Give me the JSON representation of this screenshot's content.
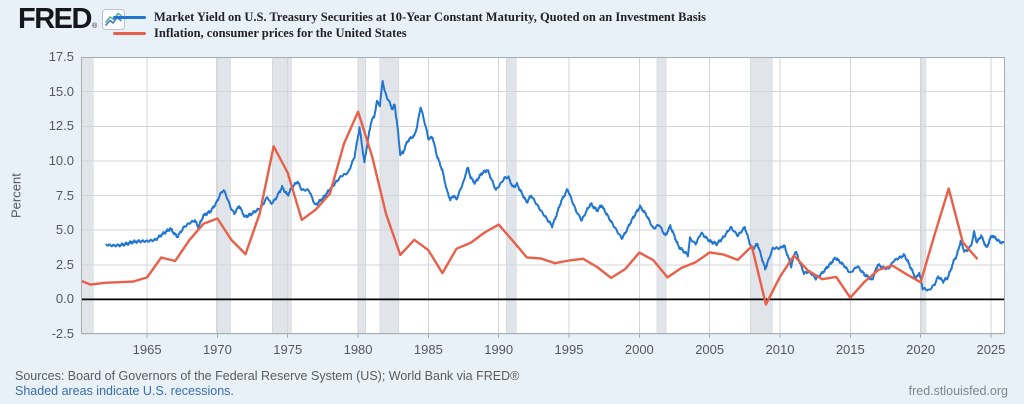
{
  "header": {
    "logo_text": "FRED",
    "logo_registered": "®"
  },
  "footer": {
    "sources": "Sources: Board of Governors of the Federal Reserve System (US); World Bank via FRED®",
    "recession_note": "Shaded areas indicate U.S. recessions.",
    "site_link": "fred.stlouisfed.org"
  },
  "chart_data": {
    "type": "line",
    "title": "",
    "xlabel": "",
    "ylabel": "Percent",
    "xlim": [
      1960.3,
      2026.0
    ],
    "ylim": [
      -2.5,
      17.5
    ],
    "yticks": [
      -2.5,
      0.0,
      2.5,
      5.0,
      7.5,
      10.0,
      12.5,
      15.0,
      17.5
    ],
    "xticks": [
      1965,
      1970,
      1975,
      1980,
      1985,
      1990,
      1995,
      2000,
      2005,
      2010,
      2015,
      2020,
      2025
    ],
    "grid": true,
    "legend_position": "top-left",
    "zero_line": 0,
    "recession_bands": [
      [
        1960.3,
        1961.17
      ],
      [
        1969.92,
        1970.92
      ],
      [
        1973.9,
        1975.25
      ],
      [
        1980.0,
        1980.55
      ],
      [
        1981.55,
        1982.9
      ],
      [
        1990.55,
        1991.25
      ],
      [
        2001.25,
        2001.9
      ],
      [
        2007.9,
        2009.45
      ],
      [
        2020.05,
        2020.38
      ]
    ],
    "colors": {
      "recession_band": "#e1e5e9",
      "recession_edge": "#c9ced3",
      "grid": "#d3d6d9",
      "border": "#a9adb2",
      "zero_line": "#000000",
      "plot_background": "#ffffff",
      "page_background": "#e9f1f8"
    },
    "series": [
      {
        "name": "Market Yield on U.S. Treasury Securities at 10-Year Constant Maturity, Quoted on an Investment Basis",
        "color": "#2176d2",
        "style": "noisy",
        "points": [
          [
            1962.1,
            3.95
          ],
          [
            1962.5,
            3.88
          ],
          [
            1963,
            3.9
          ],
          [
            1963.5,
            4.0
          ],
          [
            1964,
            4.15
          ],
          [
            1964.6,
            4.2
          ],
          [
            1965,
            4.2
          ],
          [
            1965.6,
            4.3
          ],
          [
            1966,
            4.65
          ],
          [
            1966.65,
            5.1
          ],
          [
            1966.9,
            4.8
          ],
          [
            1967.15,
            4.5
          ],
          [
            1967.6,
            5.2
          ],
          [
            1968,
            5.5
          ],
          [
            1968.4,
            5.7
          ],
          [
            1968.65,
            5.2
          ],
          [
            1969,
            6.05
          ],
          [
            1969.5,
            6.35
          ],
          [
            1969.95,
            7.0
          ],
          [
            1970.2,
            7.6
          ],
          [
            1970.45,
            7.9
          ],
          [
            1970.7,
            7.3
          ],
          [
            1970.95,
            6.6
          ],
          [
            1971.2,
            6.2
          ],
          [
            1971.55,
            6.75
          ],
          [
            1971.95,
            5.95
          ],
          [
            1972.3,
            6.1
          ],
          [
            1972.75,
            6.4
          ],
          [
            1973.1,
            6.6
          ],
          [
            1973.55,
            7.4
          ],
          [
            1973.8,
            6.9
          ],
          [
            1974.1,
            7.2
          ],
          [
            1974.6,
            8.1
          ],
          [
            1975.0,
            7.5
          ],
          [
            1975.3,
            8.1
          ],
          [
            1975.7,
            8.5
          ],
          [
            1976,
            7.9
          ],
          [
            1976.5,
            7.9
          ],
          [
            1976.95,
            6.8
          ],
          [
            1977.5,
            7.3
          ],
          [
            1978,
            7.95
          ],
          [
            1978.8,
            8.9
          ],
          [
            1979.3,
            9.15
          ],
          [
            1979.75,
            10.3
          ],
          [
            1980.1,
            12.4
          ],
          [
            1980.45,
            9.9
          ],
          [
            1980.7,
            11.5
          ],
          [
            1980.95,
            12.9
          ],
          [
            1981.15,
            13.2
          ],
          [
            1981.35,
            14.3
          ],
          [
            1981.55,
            14.0
          ],
          [
            1981.75,
            15.8
          ],
          [
            1981.9,
            15.0
          ],
          [
            1982.05,
            14.6
          ],
          [
            1982.25,
            14.2
          ],
          [
            1982.45,
            13.7
          ],
          [
            1982.6,
            14.1
          ],
          [
            1982.8,
            12.5
          ],
          [
            1983,
            10.5
          ],
          [
            1983.2,
            10.6
          ],
          [
            1983.5,
            11.4
          ],
          [
            1983.8,
            11.7
          ],
          [
            1984,
            11.8
          ],
          [
            1984.2,
            12.5
          ],
          [
            1984.45,
            13.9
          ],
          [
            1984.8,
            12.5
          ],
          [
            1985,
            11.6
          ],
          [
            1985.3,
            11.7
          ],
          [
            1985.6,
            10.4
          ],
          [
            1986,
            9.3
          ],
          [
            1986.3,
            7.9
          ],
          [
            1986.55,
            7.2
          ],
          [
            1986.8,
            7.5
          ],
          [
            1987,
            7.2
          ],
          [
            1987.3,
            8.0
          ],
          [
            1987.55,
            8.6
          ],
          [
            1987.78,
            9.6
          ],
          [
            1988,
            8.8
          ],
          [
            1988.3,
            8.4
          ],
          [
            1988.8,
            9.1
          ],
          [
            1989.2,
            9.35
          ],
          [
            1989.8,
            7.9
          ],
          [
            1990.1,
            8.3
          ],
          [
            1990.45,
            8.8
          ],
          [
            1990.7,
            8.8
          ],
          [
            1991,
            8.1
          ],
          [
            1991.3,
            8.3
          ],
          [
            1992,
            7.0
          ],
          [
            1992.3,
            7.5
          ],
          [
            1993,
            6.4
          ],
          [
            1993.8,
            5.3
          ],
          [
            1994,
            5.8
          ],
          [
            1994.45,
            7.1
          ],
          [
            1994.9,
            7.95
          ],
          [
            1995.5,
            6.4
          ],
          [
            1995.9,
            5.7
          ],
          [
            1996.3,
            6.5
          ],
          [
            1996.55,
            6.9
          ],
          [
            1997,
            6.4
          ],
          [
            1997.3,
            6.8
          ],
          [
            1998,
            5.6
          ],
          [
            1998.75,
            4.4
          ],
          [
            1999,
            4.8
          ],
          [
            1999.5,
            5.8
          ],
          [
            2000.05,
            6.7
          ],
          [
            2000.5,
            6.1
          ],
          [
            2001,
            5.1
          ],
          [
            2001.4,
            5.4
          ],
          [
            2001.85,
            4.6
          ],
          [
            2002.2,
            5.3
          ],
          [
            2002.8,
            3.8
          ],
          [
            2003.45,
            3.2
          ],
          [
            2003.6,
            4.4
          ],
          [
            2004,
            4.0
          ],
          [
            2004.4,
            4.8
          ],
          [
            2005,
            4.2
          ],
          [
            2005.5,
            4.0
          ],
          [
            2006,
            4.5
          ],
          [
            2006.5,
            5.2
          ],
          [
            2007,
            4.6
          ],
          [
            2007.5,
            5.2
          ],
          [
            2008,
            3.6
          ],
          [
            2008.4,
            4.0
          ],
          [
            2008.95,
            2.2
          ],
          [
            2009.5,
            3.7
          ],
          [
            2010,
            3.7
          ],
          [
            2010.3,
            3.9
          ],
          [
            2010.8,
            2.4
          ],
          [
            2011.1,
            3.5
          ],
          [
            2011.7,
            1.9
          ],
          [
            2012.1,
            2.0
          ],
          [
            2012.55,
            1.5
          ],
          [
            2013,
            1.9
          ],
          [
            2013.95,
            3.0
          ],
          [
            2014.5,
            2.5
          ],
          [
            2015,
            1.9
          ],
          [
            2015.5,
            2.4
          ],
          [
            2016,
            1.8
          ],
          [
            2016.55,
            1.4
          ],
          [
            2016.95,
            2.5
          ],
          [
            2017.3,
            2.3
          ],
          [
            2017.7,
            2.2
          ],
          [
            2018.1,
            2.8
          ],
          [
            2018.85,
            3.2
          ],
          [
            2019.2,
            2.5
          ],
          [
            2019.65,
            1.5
          ],
          [
            2019.9,
            1.9
          ],
          [
            2020.15,
            0.8
          ],
          [
            2020.6,
            0.65
          ],
          [
            2021,
            1.1
          ],
          [
            2021.25,
            1.65
          ],
          [
            2021.6,
            1.3
          ],
          [
            2021.95,
            1.6
          ],
          [
            2022.4,
            2.9
          ],
          [
            2022.55,
            3.1
          ],
          [
            2022.85,
            4.2
          ],
          [
            2023.1,
            3.5
          ],
          [
            2023.3,
            3.5
          ],
          [
            2023.6,
            3.9
          ],
          [
            2023.8,
            4.85
          ],
          [
            2024,
            4.1
          ],
          [
            2024.3,
            4.6
          ],
          [
            2024.7,
            3.7
          ],
          [
            2024.95,
            4.4
          ],
          [
            2025.1,
            4.6
          ],
          [
            2025.4,
            4.35
          ],
          [
            2025.7,
            4.1
          ],
          [
            2025.95,
            4.1
          ]
        ]
      },
      {
        "name": "Inflation, consumer prices for the United States",
        "color": "#e8604a",
        "style": "smooth",
        "points": [
          [
            1960,
            1.46
          ],
          [
            1961,
            1.07
          ],
          [
            1962,
            1.2
          ],
          [
            1963,
            1.24
          ],
          [
            1964,
            1.28
          ],
          [
            1965,
            1.59
          ],
          [
            1966,
            3.02
          ],
          [
            1967,
            2.77
          ],
          [
            1968,
            4.27
          ],
          [
            1969,
            5.46
          ],
          [
            1970,
            5.84
          ],
          [
            1971,
            4.29
          ],
          [
            1972,
            3.27
          ],
          [
            1973,
            6.18
          ],
          [
            1974,
            11.05
          ],
          [
            1975,
            9.14
          ],
          [
            1976,
            5.74
          ],
          [
            1977,
            6.5
          ],
          [
            1978,
            7.63
          ],
          [
            1979,
            11.25
          ],
          [
            1980,
            13.55
          ],
          [
            1981,
            10.33
          ],
          [
            1982,
            6.13
          ],
          [
            1983,
            3.21
          ],
          [
            1984,
            4.3
          ],
          [
            1985,
            3.55
          ],
          [
            1986,
            1.9
          ],
          [
            1987,
            3.66
          ],
          [
            1988,
            4.08
          ],
          [
            1989,
            4.83
          ],
          [
            1990,
            5.4
          ],
          [
            1991,
            4.23
          ],
          [
            1992,
            3.03
          ],
          [
            1993,
            2.95
          ],
          [
            1994,
            2.61
          ],
          [
            1995,
            2.81
          ],
          [
            1996,
            2.93
          ],
          [
            1997,
            2.34
          ],
          [
            1998,
            1.55
          ],
          [
            1999,
            2.19
          ],
          [
            2000,
            3.38
          ],
          [
            2001,
            2.83
          ],
          [
            2002,
            1.59
          ],
          [
            2003,
            2.27
          ],
          [
            2004,
            2.68
          ],
          [
            2005,
            3.39
          ],
          [
            2006,
            3.23
          ],
          [
            2007,
            2.85
          ],
          [
            2008,
            3.84
          ],
          [
            2009,
            -0.36
          ],
          [
            2010,
            1.64
          ],
          [
            2011,
            3.16
          ],
          [
            2012,
            2.07
          ],
          [
            2013,
            1.46
          ],
          [
            2014,
            1.62
          ],
          [
            2015,
            0.12
          ],
          [
            2016,
            1.26
          ],
          [
            2017,
            2.13
          ],
          [
            2018,
            2.44
          ],
          [
            2019,
            1.81
          ],
          [
            2020,
            1.23
          ],
          [
            2021,
            4.7
          ],
          [
            2022,
            8.0
          ],
          [
            2023,
            4.12
          ],
          [
            2024,
            2.95
          ]
        ]
      }
    ]
  }
}
